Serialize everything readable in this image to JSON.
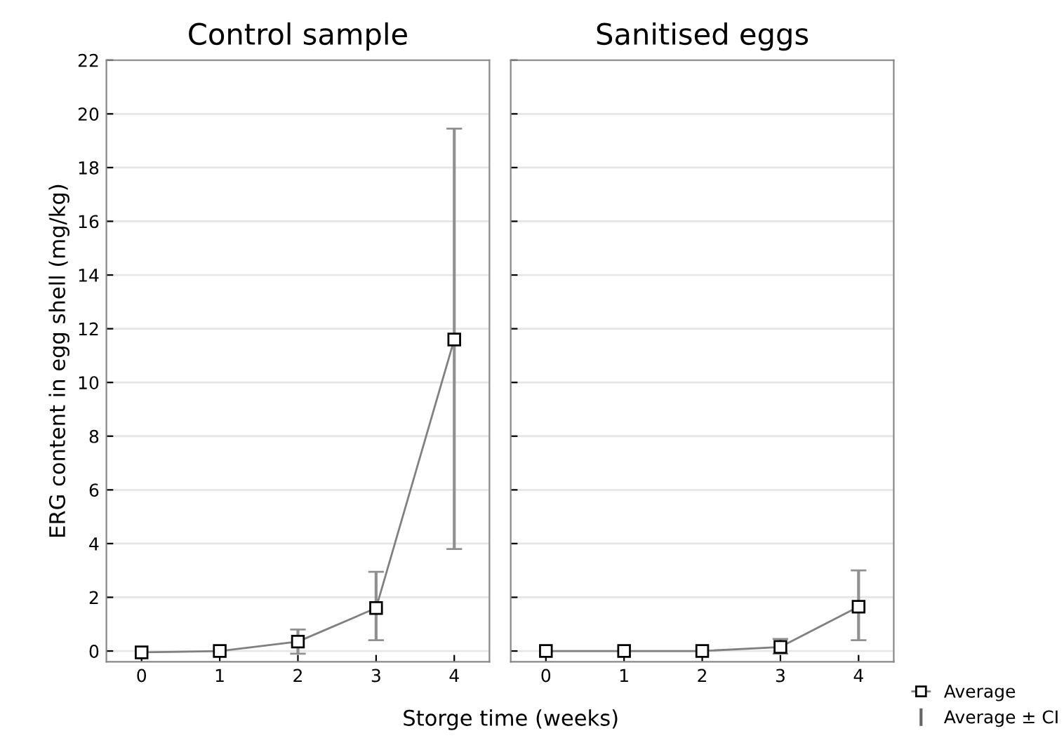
{
  "chart_data": [
    {
      "type": "line",
      "title": "Control sample",
      "xlabel": "Storge time (weeks)",
      "ylabel": "ERG content in egg shell (mg/kg)",
      "categories": [
        "0",
        "1",
        "2",
        "3",
        "4"
      ],
      "series": [
        {
          "color": "#808080",
          "values": [
            -0.05,
            0.0,
            0.35,
            1.6,
            11.6
          ],
          "errors": [
            null,
            null,
            [
              -0.1,
              0.8
            ],
            [
              0.4,
              2.95
            ],
            [
              3.8,
              19.45
            ]
          ]
        }
      ],
      "ylim": [
        -0.4,
        22
      ],
      "yticks": [
        0,
        2,
        4,
        6,
        8,
        10,
        12,
        14,
        16,
        18,
        20,
        22
      ],
      "grid": "y",
      "marker": "square",
      "line_style": "solid"
    },
    {
      "type": "line",
      "title": "Sanitised eggs",
      "categories": [
        "0",
        "1",
        "2",
        "3",
        "4"
      ],
      "series": [
        {
          "name": "Average",
          "color": "#808080",
          "values": [
            0.0,
            0.0,
            0.0,
            0.15,
            1.65
          ],
          "errors": [
            null,
            null,
            null,
            [
              -0.1,
              0.45
            ],
            [
              0.4,
              3.0
            ]
          ]
        }
      ],
      "annotations": [
        "Average ± CI"
      ],
      "ylim": [
        -0.4,
        22
      ],
      "yticks": [
        0,
        2,
        4,
        6,
        8,
        10,
        12,
        14,
        16,
        18,
        20,
        22
      ],
      "tick_labels": "x",
      "grid": "y",
      "marker": "square",
      "line_style": "solid",
      "legend": "bottom right"
    }
  ]
}
